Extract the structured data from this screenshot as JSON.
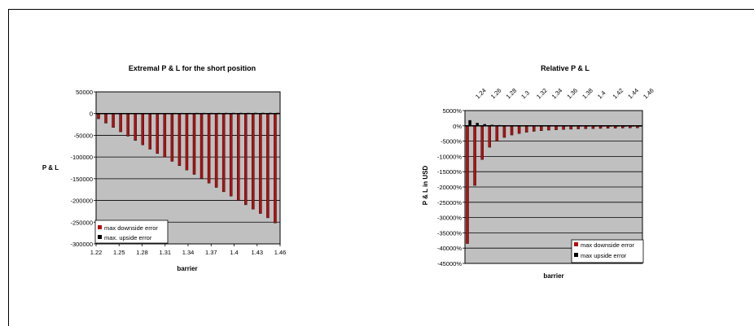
{
  "colors": {
    "plot_bg": "#c0c0c0",
    "downside": "#b50f0f",
    "upside": "#000000",
    "grid": "#000000",
    "frame": "#000000"
  },
  "chart_data": [
    {
      "type": "bar",
      "title": "Extremal P & L for the short position",
      "xlabel": "barrier",
      "ylabel": "P & L",
      "ylim": [
        -300000,
        50000
      ],
      "y_ticks": [
        "50000",
        "0",
        "-50000",
        "-100000",
        "-150000",
        "-200000",
        "-250000",
        "-300000"
      ],
      "x_tick_labels": [
        "1.22",
        "1.25",
        "1.28",
        "1.31",
        "1.34",
        "1.37",
        "1.4",
        "1.43",
        "1.46"
      ],
      "categories": [
        "1.22",
        "1.23",
        "1.24",
        "1.25",
        "1.26",
        "1.27",
        "1.28",
        "1.29",
        "1.3",
        "1.31",
        "1.32",
        "1.33",
        "1.34",
        "1.35",
        "1.36",
        "1.37",
        "1.38",
        "1.39",
        "1.4",
        "1.41",
        "1.42",
        "1.43",
        "1.44",
        "1.45",
        "1.46"
      ],
      "grid": true,
      "legend_position": "bottom-left",
      "series": [
        {
          "name": "max downside error",
          "color": "#b50f0f",
          "values": [
            -12000,
            -22000,
            -32000,
            -42000,
            -52000,
            -62000,
            -72000,
            -82000,
            -92000,
            -100000,
            -110000,
            -120000,
            -130000,
            -140000,
            -150000,
            -160000,
            -170000,
            -180000,
            -190000,
            -200000,
            -210000,
            -220000,
            -230000,
            -240000,
            -252000
          ]
        },
        {
          "name": "max. upside error",
          "color": "#000000",
          "values": [
            500,
            600,
            700,
            800,
            800,
            900,
            900,
            1000,
            1000,
            1000,
            1100,
            1100,
            1100,
            1200,
            1200,
            1200,
            1200,
            1300,
            1300,
            1300,
            1300,
            1400,
            1400,
            1400,
            1400
          ]
        }
      ]
    },
    {
      "type": "bar",
      "title": "Relative P & L",
      "xlabel": "barrier",
      "ylabel": "P & L in USD",
      "ylim": [
        -45000,
        5000
      ],
      "y_ticks": [
        "5000%",
        "0%",
        "-5000%",
        "-10000%",
        "-15000%",
        "-20000%",
        "-25000%",
        "-30000%",
        "-35000%",
        "-40000%",
        "-45000%"
      ],
      "x_tick_labels": [
        "1.24",
        "1.26",
        "1.28",
        "1.3",
        "1.32",
        "1.34",
        "1.36",
        "1.38",
        "1.4",
        "1.42",
        "1.44",
        "1.46"
      ],
      "categories": [
        "1.23",
        "1.24",
        "1.25",
        "1.26",
        "1.27",
        "1.28",
        "1.29",
        "1.3",
        "1.31",
        "1.32",
        "1.33",
        "1.34",
        "1.35",
        "1.36",
        "1.37",
        "1.38",
        "1.39",
        "1.4",
        "1.41",
        "1.42",
        "1.43",
        "1.44",
        "1.45",
        "1.46"
      ],
      "grid": true,
      "legend_position": "bottom-right",
      "series": [
        {
          "name": "max downside error",
          "color": "#b50f0f",
          "values": [
            -38500,
            -19500,
            -11000,
            -7000,
            -5000,
            -3800,
            -3000,
            -2500,
            -2100,
            -1800,
            -1600,
            -1400,
            -1300,
            -1200,
            -1100,
            -1000,
            -950,
            -900,
            -850,
            -800,
            -760,
            -720,
            -690,
            -660
          ]
        },
        {
          "name": "max upside error",
          "color": "#000000",
          "values": [
            1800,
            900,
            500,
            300,
            200,
            150,
            120,
            100,
            90,
            80,
            70,
            60,
            55,
            50,
            45,
            40,
            38,
            36,
            34,
            32,
            30,
            28,
            26,
            25
          ]
        }
      ]
    }
  ]
}
